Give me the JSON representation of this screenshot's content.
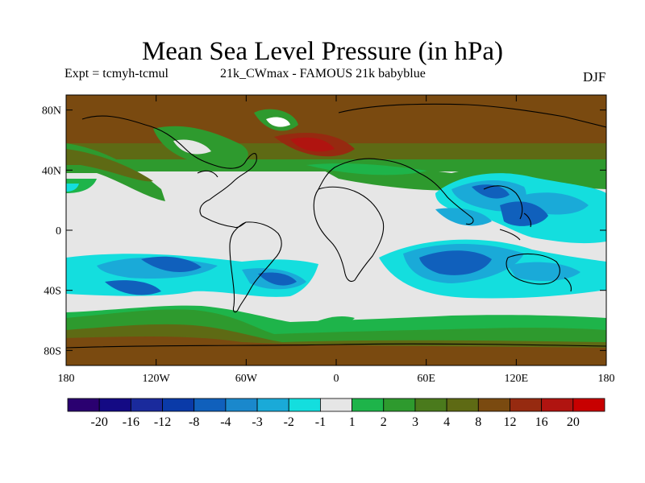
{
  "title": "Mean Sea Level Pressure (in hPa)",
  "expt_label": "Expt = tcmyh-tcmul",
  "run_label": "21k_CWmax - FAMOUS 21k babyblue",
  "season": "DJF",
  "lat_ticks": [
    {
      "label": "80N",
      "lat": 80
    },
    {
      "label": "40N",
      "lat": 40
    },
    {
      "label": "0",
      "lat": 0
    },
    {
      "label": "40S",
      "lat": -40
    },
    {
      "label": "80S",
      "lat": -80
    }
  ],
  "lon_ticks": [
    {
      "label": "180",
      "lon": -180
    },
    {
      "label": "120W",
      "lon": -120
    },
    {
      "label": "60W",
      "lon": -60
    },
    {
      "label": "0",
      "lon": 0
    },
    {
      "label": "60E",
      "lon": 60
    },
    {
      "label": "120E",
      "lon": 120
    },
    {
      "label": "180",
      "lon": 180
    }
  ],
  "colorbar": {
    "labels": [
      "-20",
      "-16",
      "-12",
      "-8",
      "-4",
      "-3",
      "-2",
      "-1",
      "1",
      "2",
      "3",
      "4",
      "8",
      "12",
      "16",
      "20"
    ],
    "colors": [
      "#2a0070",
      "#140a84",
      "#1a2a9c",
      "#0a3aa8",
      "#1060bc",
      "#1a88cc",
      "#1aaad8",
      "#14dede",
      "#e6e6e6",
      "#1eb44a",
      "#2e9a2e",
      "#4a7a1c",
      "#5e6a14",
      "#7a4a10",
      "#962a10",
      "#b01410",
      "#c80000"
    ]
  }
}
